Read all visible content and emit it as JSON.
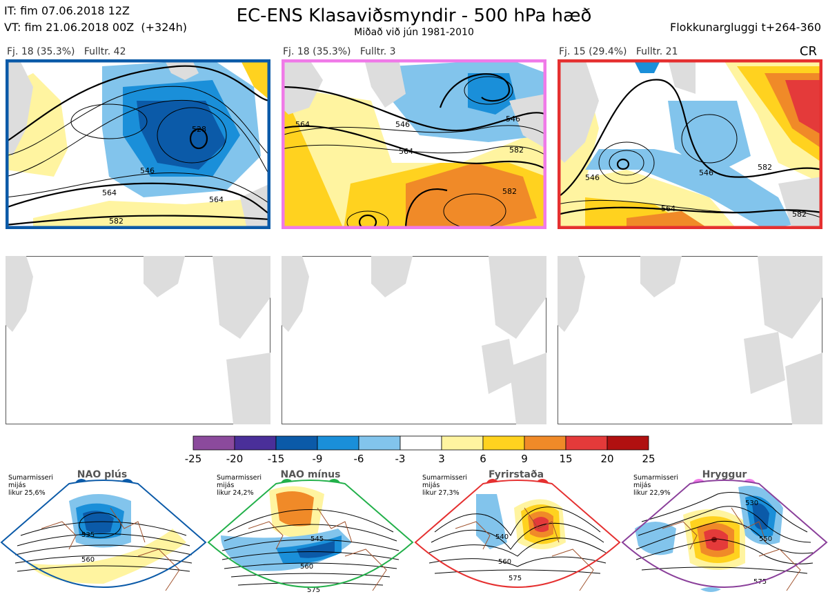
{
  "header": {
    "init_line": "IT: fim 07.06.2018 12Z",
    "valid_line": "VT: fim 21.06.2018 00Z  (+324h)",
    "title": "EC-ENS Klasaviðsmyndir - 500 hPa hæð",
    "subtitle": "Miðað við jún 1981-2010",
    "window": "Flokkunargluggi t+264-360",
    "corner_code": "CR"
  },
  "clusters": [
    {
      "label": "Fj. 18 (35.3%)   Fulltr. 42",
      "frame_color": "#0b5aa8",
      "contour_labels": [
        "528",
        "546",
        "564",
        "564",
        "582"
      ]
    },
    {
      "label": "Fj. 18 (35.3%)   Fulltr. 3",
      "frame_color": "#f07ae8",
      "contour_labels": [
        "546",
        "564",
        "546",
        "564",
        "582",
        "582"
      ]
    },
    {
      "label": "Fj. 15 (29.4%)   Fulltr. 21",
      "frame_color": "#e53030",
      "contour_labels": [
        "546",
        "546",
        "564",
        "582",
        "582"
      ]
    }
  ],
  "colorbar": {
    "ticks": [
      "-25",
      "-20",
      "-15",
      "-9",
      "-6",
      "-3",
      "3",
      "6",
      "9",
      "15",
      "20",
      "25"
    ],
    "colors": [
      "#8b4a9c",
      "#4a2f99",
      "#0b5aa8",
      "#1a8fd9",
      "#82c4ec",
      "#ffffff",
      "#fff4a0",
      "#ffd21f",
      "#f08a28",
      "#e43a3a",
      "#b01010"
    ]
  },
  "regimes": [
    {
      "name": "NAO plús",
      "info": [
        "Sumarmisseri",
        "mijás",
        "likur 25,6%"
      ],
      "dot_color": "#0b5aa8",
      "frame_color": "#0b5aa8",
      "contours": [
        "535",
        "560"
      ]
    },
    {
      "name": "NAO mínus",
      "info": [
        "Sumarmisseri",
        "mijás",
        "likur 24,2%"
      ],
      "dot_color": "#22b04a",
      "frame_color": "#22b04a",
      "contours": [
        "545",
        "560",
        "575"
      ]
    },
    {
      "name": "Fyrirstaða",
      "info": [
        "Sumarmisseri",
        "mijás",
        "likur 27,3%"
      ],
      "dot_color": "#e53030",
      "frame_color": "#e53030",
      "contours": [
        "540",
        "560",
        "575"
      ]
    },
    {
      "name": "Hryggur",
      "info": [
        "Sumarmisseri",
        "mijás",
        "likur 22,9%"
      ],
      "dot_color": "#f07ae8",
      "frame_color": "#8a3f9a",
      "contours": [
        "530",
        "550",
        "575"
      ]
    }
  ]
}
